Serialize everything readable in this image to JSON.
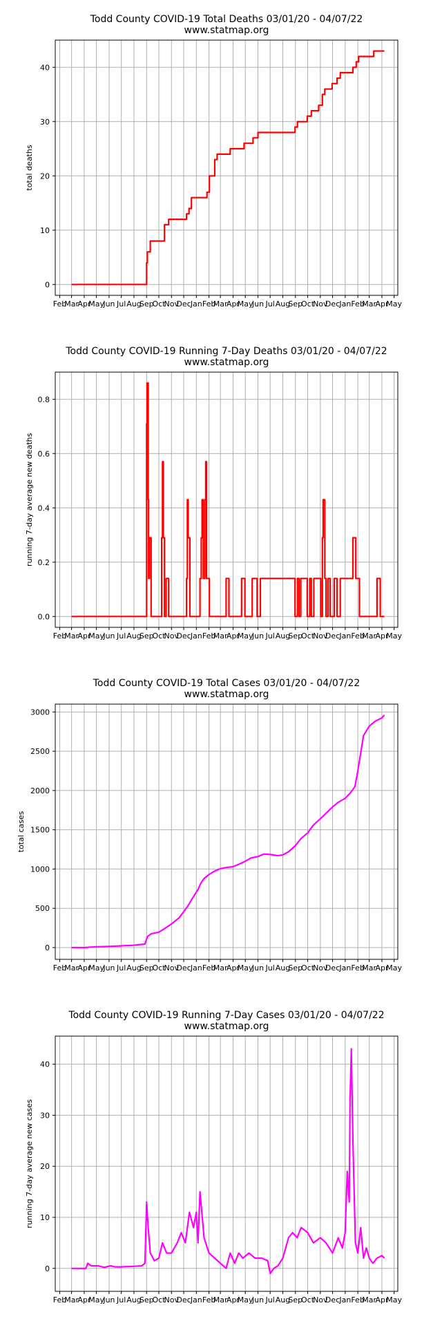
{
  "charts": [
    {
      "name": "total-deaths",
      "title": "Todd County COVID-19 Total Deaths 03/01/20 - 04/07/22",
      "subtitle": "www.statmap.org",
      "ylabel": "total deaths",
      "color": "#ff0000",
      "type": "line",
      "step": true,
      "ylim": [
        -2,
        45
      ],
      "yticks": [
        0,
        10,
        20,
        30,
        40
      ],
      "ytick_labels": [
        "0",
        "10",
        "20",
        "30",
        "40"
      ]
    },
    {
      "name": "running-7day-deaths",
      "title": "Todd County COVID-19 Running 7-Day Deaths 03/01/20 - 04/07/22",
      "subtitle": "www.statmap.org",
      "ylabel": "running 7-day average new deaths",
      "color": "#ff0000",
      "type": "line",
      "step": true,
      "ylim": [
        -0.04,
        0.9
      ],
      "yticks": [
        0.0,
        0.2,
        0.4,
        0.6,
        0.8
      ],
      "ytick_labels": [
        "0.0",
        "0.2",
        "0.4",
        "0.6",
        "0.8"
      ]
    },
    {
      "name": "total-cases",
      "title": "Todd County COVID-19 Total Cases 03/01/20 - 04/07/22",
      "subtitle": "www.statmap.org",
      "ylabel": "total cases",
      "color": "#ff00ff",
      "type": "line",
      "step": false,
      "ylim": [
        -150,
        3100
      ],
      "yticks": [
        0,
        500,
        1000,
        1500,
        2000,
        2500,
        3000
      ],
      "ytick_labels": [
        "0",
        "500",
        "1000",
        "1500",
        "2000",
        "2500",
        "3000"
      ]
    },
    {
      "name": "running-7day-cases",
      "title": "Todd County COVID-19 Running 7-Day Cases 03/01/20 - 04/07/22",
      "subtitle": "www.statmap.org",
      "ylabel": "running 7-day average new cases",
      "color": "#ff00ff",
      "type": "line",
      "step": false,
      "ylim": [
        -4.5,
        45.5
      ],
      "yticks": [
        0,
        10,
        20,
        30,
        40
      ],
      "ytick_labels": [
        "0",
        "10",
        "20",
        "30",
        "40"
      ]
    }
  ],
  "x_ticks": [
    "Feb",
    "Mar",
    "Apr",
    "May",
    "Jun",
    "Jul",
    "Aug",
    "Sep",
    "Oct",
    "Nov",
    "Dec",
    "Jan",
    "Feb",
    "Mar",
    "Apr",
    "May",
    "Jun",
    "Jul",
    "Aug",
    "Sep",
    "Oct",
    "Nov",
    "Dec",
    "Jan",
    "Feb",
    "Mar",
    "Apr",
    "May"
  ],
  "chart_data": [
    {
      "type": "line",
      "title": "Todd County COVID-19 Total Deaths 03/01/20 - 04/07/22",
      "ylabel": "total deaths",
      "xlim": [
        "2020-01-21",
        "2022-05-10"
      ],
      "ylim": [
        -2,
        45
      ],
      "grid": true,
      "series": [
        {
          "color": "#ff0000",
          "x": [
            "2020-03-01",
            "2020-09-01",
            "2020-09-03",
            "2020-09-06",
            "2020-09-10",
            "2020-10-10",
            "2020-10-15",
            "2020-10-25",
            "2020-12-08",
            "2020-12-14",
            "2020-12-20",
            "2021-01-22",
            "2021-01-27",
            "2021-02-02",
            "2021-02-15",
            "2021-02-21",
            "2021-03-25",
            "2021-04-28",
            "2021-05-20",
            "2021-06-01",
            "2021-08-31",
            "2021-09-06",
            "2021-09-30",
            "2021-10-10",
            "2021-10-28",
            "2021-11-06",
            "2021-11-12",
            "2021-11-18",
            "2021-11-30",
            "2021-12-12",
            "2021-12-20",
            "2022-01-20",
            "2022-01-28",
            "2022-02-03",
            "2022-03-10",
            "2022-03-12",
            "2022-04-07"
          ],
          "y": [
            0,
            4,
            6,
            6,
            8,
            8,
            11,
            12,
            13,
            14,
            16,
            16,
            17,
            20,
            23,
            24,
            25,
            26,
            27,
            28,
            29,
            30,
            31,
            32,
            33,
            35,
            36,
            36,
            37,
            38,
            39,
            40,
            41,
            42,
            42,
            43,
            43
          ]
        }
      ]
    },
    {
      "type": "line",
      "title": "Todd County COVID-19 Running 7-Day Deaths 03/01/20 - 04/07/22",
      "ylabel": "running 7-day average new deaths",
      "xlim": [
        "2020-01-21",
        "2022-05-10"
      ],
      "ylim": [
        -0.04,
        0.9
      ],
      "grid": true,
      "series": [
        {
          "color": "#ff0000",
          "x": [
            "2020-03-01",
            "2020-09-01",
            "2020-09-02",
            "2020-09-03",
            "2020-09-05",
            "2020-09-06",
            "2020-09-08",
            "2020-09-12",
            "2020-10-08",
            "2020-10-10",
            "2020-10-12",
            "2020-10-15",
            "2020-10-19",
            "2020-10-25",
            "2020-11-01",
            "2020-12-08",
            "2020-12-10",
            "2020-12-12",
            "2020-12-16",
            "2021-01-10",
            "2021-01-13",
            "2021-01-15",
            "2021-01-18",
            "2021-01-22",
            "2021-01-24",
            "2021-01-26",
            "2021-02-02",
            "2021-03-15",
            "2021-03-22",
            "2021-04-22",
            "2021-04-30",
            "2021-05-18",
            "2021-05-30",
            "2021-06-07",
            "2021-08-31",
            "2021-09-06",
            "2021-09-10",
            "2021-09-14",
            "2021-09-30",
            "2021-10-06",
            "2021-10-10",
            "2021-10-16",
            "2021-11-02",
            "2021-11-06",
            "2021-11-08",
            "2021-11-12",
            "2021-11-15",
            "2021-11-20",
            "2021-11-25",
            "2021-12-05",
            "2021-12-12",
            "2021-12-20",
            "2022-01-20",
            "2022-01-27",
            "2022-02-05",
            "2022-02-15",
            "2022-03-20",
            "2022-03-28",
            "2022-04-07"
          ],
          "y": [
            0,
            0.71,
            0.86,
            0.86,
            0.43,
            0.14,
            0.29,
            0,
            0.29,
            0.57,
            0.29,
            0,
            0.14,
            0,
            0,
            0.14,
            0.43,
            0.29,
            0,
            0.14,
            0.29,
            0.43,
            0.14,
            0.43,
            0.57,
            0.14,
            0,
            0.14,
            0,
            0.14,
            0,
            0.14,
            0,
            0.14,
            0,
            0.14,
            0,
            0.14,
            0,
            0.14,
            0,
            0.14,
            0,
            0.29,
            0.43,
            0.14,
            0,
            0.14,
            0,
            0.14,
            0,
            0.14,
            0.29,
            0.14,
            0,
            0,
            0.14,
            0,
            0
          ]
        }
      ]
    },
    {
      "type": "line",
      "title": "Todd County COVID-19 Total Cases 03/01/20 - 04/07/22",
      "ylabel": "total cases",
      "xlim": [
        "2020-01-21",
        "2022-05-10"
      ],
      "ylim": [
        -150,
        3100
      ],
      "grid": true,
      "series": [
        {
          "color": "#ff00ff",
          "x": [
            "2020-03-01",
            "2020-04-01",
            "2020-05-01",
            "2020-06-01",
            "2020-07-01",
            "2020-08-01",
            "2020-08-28",
            "2020-09-03",
            "2020-09-12",
            "2020-10-01",
            "2020-10-15",
            "2020-11-01",
            "2020-11-20",
            "2020-12-10",
            "2020-12-25",
            "2021-01-05",
            "2021-01-12",
            "2021-01-20",
            "2021-02-01",
            "2021-02-15",
            "2021-03-01",
            "2021-03-15",
            "2021-04-01",
            "2021-04-15",
            "2021-05-01",
            "2021-05-15",
            "2021-06-01",
            "2021-06-15",
            "2021-07-01",
            "2021-07-20",
            "2021-08-01",
            "2021-08-15",
            "2021-09-01",
            "2021-09-15",
            "2021-10-01",
            "2021-10-15",
            "2021-11-01",
            "2021-11-15",
            "2021-12-01",
            "2021-12-15",
            "2022-01-01",
            "2022-01-12",
            "2022-01-18",
            "2022-01-25",
            "2022-02-01",
            "2022-02-15",
            "2022-03-01",
            "2022-03-15",
            "2022-04-01",
            "2022-04-07"
          ],
          "y": [
            0,
            0,
            10,
            15,
            22,
            30,
            45,
            140,
            175,
            195,
            240,
            300,
            380,
            520,
            650,
            740,
            820,
            880,
            930,
            975,
            1005,
            1020,
            1030,
            1060,
            1100,
            1140,
            1160,
            1190,
            1185,
            1170,
            1180,
            1220,
            1300,
            1390,
            1460,
            1560,
            1640,
            1710,
            1790,
            1850,
            1900,
            1960,
            2000,
            2050,
            2250,
            2700,
            2820,
            2880,
            2925,
            2960
          ]
        }
      ]
    },
    {
      "type": "line",
      "title": "Todd County COVID-19 Running 7-Day Cases 03/01/20 - 04/07/22",
      "ylabel": "running 7-day average new cases",
      "xlim": [
        "2020-01-21",
        "2022-05-10"
      ],
      "ylim": [
        -4.5,
        45.5
      ],
      "grid": true,
      "series": [
        {
          "color": "#ff00ff",
          "x": [
            "2020-03-01",
            "2020-04-05",
            "2020-04-10",
            "2020-04-18",
            "2020-05-05",
            "2020-05-20",
            "2020-06-05",
            "2020-06-15",
            "2020-07-01",
            "2020-08-01",
            "2020-08-20",
            "2020-08-28",
            "2020-09-01",
            "2020-09-05",
            "2020-09-10",
            "2020-09-20",
            "2020-10-01",
            "2020-10-10",
            "2020-10-20",
            "2020-11-01",
            "2020-11-15",
            "2020-11-25",
            "2020-12-05",
            "2020-12-15",
            "2020-12-25",
            "2021-01-01",
            "2021-01-05",
            "2021-01-10",
            "2021-01-20",
            "2021-02-01",
            "2021-02-15",
            "2021-03-01",
            "2021-03-15",
            "2021-03-25",
            "2021-04-05",
            "2021-04-15",
            "2021-04-25",
            "2021-05-10",
            "2021-05-25",
            "2021-06-10",
            "2021-06-25",
            "2021-07-01",
            "2021-07-10",
            "2021-07-20",
            "2021-08-01",
            "2021-08-15",
            "2021-08-25",
            "2021-09-05",
            "2021-09-15",
            "2021-10-01",
            "2021-10-15",
            "2021-11-01",
            "2021-11-15",
            "2021-12-01",
            "2021-12-15",
            "2021-12-25",
            "2022-01-01",
            "2022-01-06",
            "2022-01-11",
            "2022-01-13",
            "2022-01-16",
            "2022-01-20",
            "2022-01-26",
            "2022-02-01",
            "2022-02-08",
            "2022-02-15",
            "2022-02-22",
            "2022-03-01",
            "2022-03-10",
            "2022-03-20",
            "2022-04-01",
            "2022-04-07"
          ],
          "y": [
            0,
            0,
            1,
            0.5,
            0.5,
            0.2,
            0.5,
            0.3,
            0.3,
            0.4,
            0.5,
            1,
            13,
            8,
            3,
            1.5,
            2,
            5,
            3,
            3,
            5,
            7,
            5,
            11,
            8,
            11,
            5,
            15,
            6,
            3,
            2,
            1,
            0,
            3,
            1,
            3,
            2,
            3,
            2,
            2,
            1.5,
            -1,
            0,
            0.5,
            2,
            6,
            7,
            6,
            8,
            7,
            5,
            6,
            5,
            3,
            6,
            4,
            7,
            19,
            13,
            33,
            43,
            25,
            5,
            3,
            8,
            2,
            4,
            2,
            1,
            2,
            2.5,
            2
          ]
        }
      ]
    }
  ]
}
